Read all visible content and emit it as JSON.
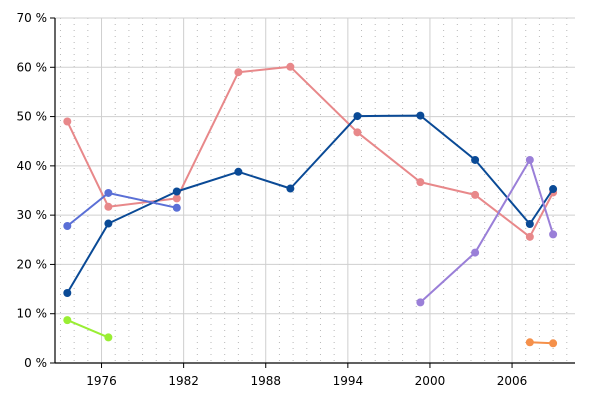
{
  "chart_data": {
    "type": "line",
    "title": "",
    "xlabel": "",
    "ylabel": "",
    "xlim": [
      1972.6,
      2010.6
    ],
    "ylim": [
      0,
      70
    ],
    "x_ticks": [
      1976,
      1982,
      1988,
      1994,
      2000,
      2006
    ],
    "y_ticks": [
      {
        "value": 0,
        "label": "0 %"
      },
      {
        "value": 10,
        "label": "10 %"
      },
      {
        "value": 20,
        "label": "20 %"
      },
      {
        "value": 30,
        "label": "30 %"
      },
      {
        "value": 40,
        "label": "40 %"
      },
      {
        "value": 50,
        "label": "50 %"
      },
      {
        "value": 60,
        "label": "60 %"
      },
      {
        "value": 70,
        "label": "70 %"
      }
    ],
    "grid": true,
    "legend": "none",
    "series": [
      {
        "color": "#e8888a",
        "points": [
          [
            1973.5,
            49.0
          ],
          [
            1976.5,
            31.7
          ],
          [
            1981.5,
            33.4
          ],
          [
            1986.0,
            59.0
          ],
          [
            1989.8,
            60.1
          ],
          [
            1994.7,
            46.8
          ],
          [
            1999.3,
            36.7
          ],
          [
            2003.3,
            34.1
          ],
          [
            2007.3,
            25.6
          ],
          [
            2009.0,
            34.6
          ]
        ]
      },
      {
        "color": "#0a4a96",
        "points": [
          [
            1973.5,
            14.2
          ],
          [
            1976.5,
            28.3
          ],
          [
            1981.5,
            34.8
          ],
          [
            1986.0,
            38.8
          ],
          [
            1989.8,
            35.4
          ],
          [
            1994.7,
            50.1
          ],
          [
            1999.3,
            50.2
          ],
          [
            2003.3,
            41.2
          ],
          [
            2007.3,
            28.2
          ],
          [
            2009.0,
            35.3
          ]
        ]
      },
      {
        "color": "#5a6fd6",
        "points": [
          [
            1973.5,
            27.8
          ],
          [
            1976.5,
            34.5
          ],
          [
            1981.5,
            31.5
          ]
        ]
      },
      {
        "color": "#99ee33",
        "points": [
          [
            1973.5,
            8.7
          ],
          [
            1976.5,
            5.2
          ]
        ]
      },
      {
        "color": "#9a7fd8",
        "points": [
          [
            1999.3,
            12.3
          ],
          [
            2003.3,
            22.4
          ],
          [
            2007.3,
            41.2
          ],
          [
            2009.0,
            26.1
          ]
        ]
      },
      {
        "color": "#f5904a",
        "points": [
          [
            2007.3,
            4.2
          ],
          [
            2009.0,
            4.0
          ]
        ]
      }
    ]
  }
}
